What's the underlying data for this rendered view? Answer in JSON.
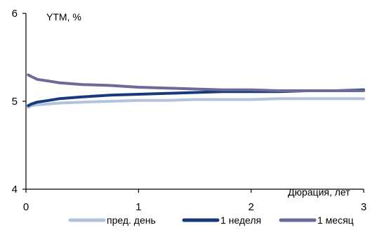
{
  "chart_data": {
    "type": "line",
    "ylabel": "YTM, %",
    "xlabel": "Дюрация, лет",
    "xlim": [
      0,
      3
    ],
    "ylim": [
      4,
      6
    ],
    "x_ticks": [
      "0",
      "1",
      "2",
      "3"
    ],
    "y_ticks": [
      "4",
      "5",
      "6"
    ],
    "grid": false,
    "legend_position": "bottom",
    "x": [
      0.02,
      0.05,
      0.1,
      0.2,
      0.3,
      0.5,
      0.75,
      1.0,
      1.25,
      1.5,
      1.75,
      2.0,
      2.25,
      2.5,
      2.75,
      3.0
    ],
    "series": [
      {
        "name": "пред. день",
        "color": "#b3c3dc",
        "values": [
          4.93,
          4.95,
          4.96,
          4.97,
          4.98,
          4.99,
          5.0,
          5.01,
          5.01,
          5.02,
          5.02,
          5.02,
          5.03,
          5.03,
          5.03,
          5.03
        ]
      },
      {
        "name": "1 неделя",
        "color": "#183a7d",
        "values": [
          4.95,
          4.97,
          4.99,
          5.01,
          5.03,
          5.05,
          5.07,
          5.08,
          5.09,
          5.1,
          5.11,
          5.11,
          5.11,
          5.12,
          5.12,
          5.13
        ]
      },
      {
        "name": "1 месяц",
        "color": "#6c6a96",
        "values": [
          5.3,
          5.28,
          5.25,
          5.23,
          5.21,
          5.19,
          5.18,
          5.16,
          5.15,
          5.14,
          5.13,
          5.13,
          5.12,
          5.12,
          5.12,
          5.12
        ]
      }
    ]
  }
}
